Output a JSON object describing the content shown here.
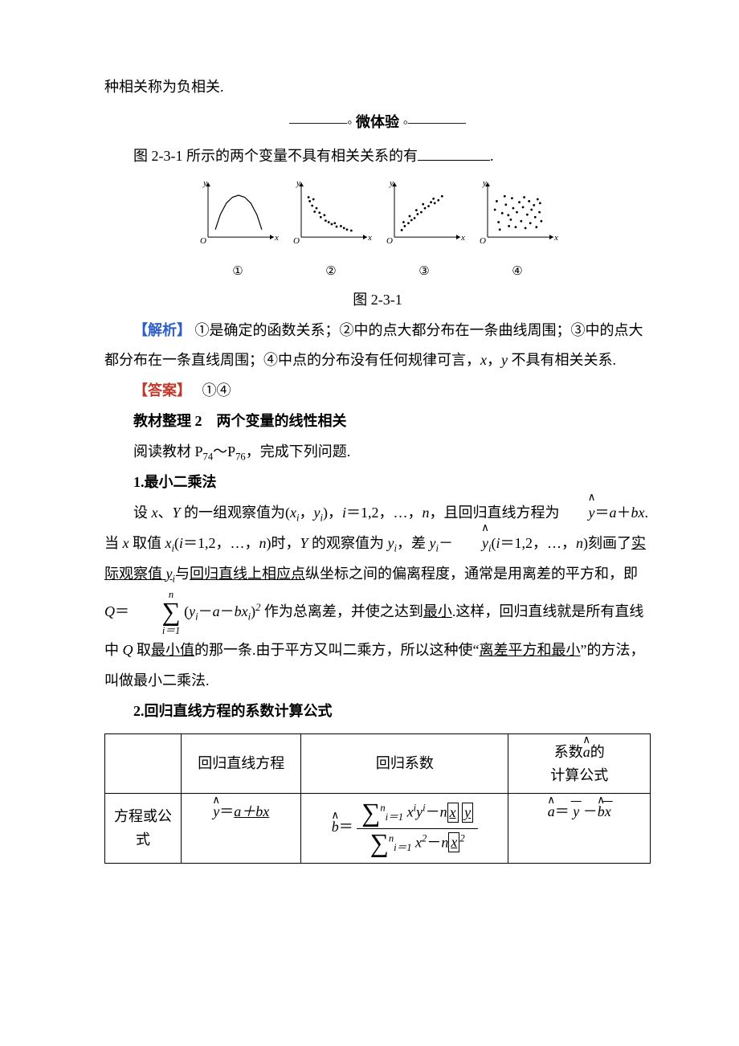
{
  "colors": {
    "text": "#000000",
    "blue": "#2c5fc9",
    "red": "#c0392b",
    "background": "#ffffff",
    "axis": "#000000",
    "point": "#000000"
  },
  "typography": {
    "base_fontsize_pt": 14,
    "line_height": 2.1,
    "font_family": "SimSun"
  },
  "p1": "种相关称为负相关.",
  "divider": {
    "left": "————◦",
    "label": "微体验",
    "right": "◦————"
  },
  "q1": {
    "prefix": "图 2-3-1 所示的两个变量不具有相关关系的有",
    "suffix": "."
  },
  "fig_caption": "图 2-3-1",
  "scatter": {
    "type": "scatter-small-multiples",
    "axis_x": "x",
    "axis_y": "y",
    "origin": "O",
    "panel_size_px": 110,
    "panels": [
      {
        "label": "①",
        "kind": "curve-arc",
        "curve": {
          "x": [
            0.12,
            0.2,
            0.3,
            0.4,
            0.5,
            0.6,
            0.7,
            0.8,
            0.88
          ],
          "y": [
            0.15,
            0.45,
            0.68,
            0.8,
            0.84,
            0.8,
            0.68,
            0.45,
            0.15
          ]
        }
      },
      {
        "label": "②",
        "kind": "scatter",
        "points": [
          [
            0.12,
            0.8
          ],
          [
            0.14,
            0.72
          ],
          [
            0.2,
            0.76
          ],
          [
            0.18,
            0.63
          ],
          [
            0.25,
            0.58
          ],
          [
            0.22,
            0.51
          ],
          [
            0.3,
            0.49
          ],
          [
            0.32,
            0.4
          ],
          [
            0.38,
            0.44
          ],
          [
            0.4,
            0.33
          ],
          [
            0.45,
            0.3
          ],
          [
            0.5,
            0.26
          ],
          [
            0.55,
            0.28
          ],
          [
            0.58,
            0.21
          ],
          [
            0.65,
            0.22
          ],
          [
            0.7,
            0.18
          ],
          [
            0.75,
            0.15
          ],
          [
            0.82,
            0.13
          ]
        ]
      },
      {
        "label": "③",
        "kind": "scatter",
        "points": [
          [
            0.12,
            0.14
          ],
          [
            0.17,
            0.22
          ],
          [
            0.15,
            0.3
          ],
          [
            0.23,
            0.28
          ],
          [
            0.28,
            0.34
          ],
          [
            0.25,
            0.42
          ],
          [
            0.33,
            0.38
          ],
          [
            0.38,
            0.46
          ],
          [
            0.36,
            0.54
          ],
          [
            0.44,
            0.5
          ],
          [
            0.5,
            0.58
          ],
          [
            0.47,
            0.66
          ],
          [
            0.56,
            0.62
          ],
          [
            0.6,
            0.7
          ],
          [
            0.66,
            0.68
          ],
          [
            0.64,
            0.77
          ],
          [
            0.72,
            0.74
          ],
          [
            0.78,
            0.82
          ]
        ]
      },
      {
        "label": "④",
        "kind": "scatter",
        "points": [
          [
            0.12,
            0.55
          ],
          [
            0.18,
            0.3
          ],
          [
            0.15,
            0.72
          ],
          [
            0.24,
            0.48
          ],
          [
            0.2,
            0.15
          ],
          [
            0.3,
            0.65
          ],
          [
            0.28,
            0.82
          ],
          [
            0.35,
            0.22
          ],
          [
            0.34,
            0.44
          ],
          [
            0.42,
            0.58
          ],
          [
            0.4,
            0.78
          ],
          [
            0.38,
            0.35
          ],
          [
            0.48,
            0.5
          ],
          [
            0.46,
            0.2
          ],
          [
            0.52,
            0.7
          ],
          [
            0.55,
            0.32
          ],
          [
            0.58,
            0.6
          ],
          [
            0.6,
            0.8
          ],
          [
            0.62,
            0.18
          ],
          [
            0.65,
            0.45
          ],
          [
            0.68,
            0.72
          ],
          [
            0.72,
            0.55
          ],
          [
            0.7,
            0.28
          ],
          [
            0.76,
            0.64
          ],
          [
            0.78,
            0.4
          ],
          [
            0.8,
            0.2
          ],
          [
            0.82,
            0.76
          ],
          [
            0.85,
            0.5
          ],
          [
            0.88,
            0.32
          ],
          [
            0.86,
            0.68
          ]
        ]
      }
    ]
  },
  "analysis": {
    "label": "【解析】",
    "text": "①是确定的函数关系；②中的点大都分布在一条曲线周围；③中的点大都分布在一条直线周围；④中点的分布没有任何规律可言，",
    "tail1": "，",
    "tail2": " 不具有相关关系."
  },
  "answer": {
    "label": "【答案】",
    "text": "①④"
  },
  "sec2": {
    "head": "教材整理 2　两个变量的线性相关",
    "read_a": "阅读教材 P",
    "read_b": "～P",
    "read_c": "，完成下列问题.",
    "p74": "74",
    "p76": "76",
    "item1": "1.最小二乘法"
  },
  "lsq": {
    "l1a": "设 ",
    "l1b": "、",
    "l1c": " 的一组观察值为(",
    "l1d": "，",
    "l1e": ")，",
    "l1f": "＝1,2，…，",
    "l1g": "，且回归直线方程为",
    "l1h": "＝",
    "l1i": "＋",
    "l2a": ".当 ",
    "l2b": " 取值 ",
    "l2c": "(",
    "l2d": "＝1,2，…，",
    "l2e": ")时，",
    "l2f": " 的观察值为 ",
    "l2g": "，差 ",
    "l2h": "－",
    "l2i": "(",
    "l2j": "＝1,2，…，",
    "l2k": ")刻画了",
    "l3a": "与",
    "l3b": "纵坐标之间的偏离程度，通常是用离差的平方和，即 ",
    "l3u1": "实际观察值 ",
    "l3u2": "回归直线上相应点",
    "l3c": "＝",
    "l3d": " 作为总离差，并使之达到",
    "l3e": ".这样，回归直线就是所有直线中 ",
    "l3f": " 取",
    "l3g": "的那一条.由于平方又叫二乘方，所以这种使“",
    "l3h": "”的方法，叫做最小二乘法.",
    "u_min": "最小",
    "u_minval": "最小值",
    "u_sq": "离差平方和最小",
    "item2": "2.回归直线方程的系数计算公式"
  },
  "vars": {
    "x": "x",
    "Y": "Y",
    "y": "y",
    "i": "i",
    "n": "n",
    "a": "a",
    "b": "b",
    "Q": "Q"
  },
  "table": {
    "h1": "回归直线方程",
    "h2": "回归系数",
    "h3a": "系数",
    "h3b": "的",
    "h3c": "计算公式",
    "r1": "方程或公式",
    "eqline_y_hat": "y",
    "eqline_eq": "＝",
    "eqline_body": "a＋bx",
    "a_sym": "a",
    "b_sym": "b",
    "y_sym": "y",
    "x_sym": "x",
    "coef_b": {
      "num_parts": {
        "sigma_top": "n",
        "sigma_bot": "i＝1",
        "inner": "x",
        "sup": "i",
        "y": "y",
        "dash": "－",
        "n": "n"
      },
      "den_parts": {
        "sigma_top": "n",
        "sigma_bot": "i＝1",
        "inner": "x",
        "sq": "2",
        "dash": "－",
        "n": "n"
      }
    }
  }
}
